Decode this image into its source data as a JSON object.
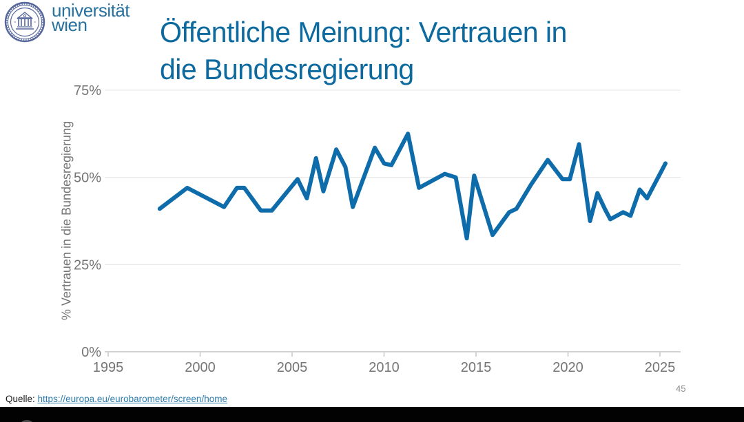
{
  "logo": {
    "institution": "Universität Wien",
    "wordmark_line1": "universität",
    "wordmark_line2": "wien",
    "seal_color": "#55679b",
    "wordmark_color": "#26719e"
  },
  "header": {
    "title_line1": "Öffentliche Meinung: Vertrauen in",
    "title_line2": "die Bundesregierung",
    "title_color": "#0d6a9e"
  },
  "source": {
    "label": "Quelle:",
    "link_text": "https://europa.eu/eurobarometer/screen/home"
  },
  "page": {
    "number": "45"
  },
  "chart_data": {
    "type": "line",
    "title": "Öffentliche Meinung: Vertrauen in die Bundesregierung",
    "xlabel": "",
    "ylabel": "% Vertrauen in die Bundesregierung",
    "x_ticks": [
      1995,
      2000,
      2005,
      2010,
      2015,
      2020,
      2025
    ],
    "x_tick_labels": [
      "1995",
      "2000",
      "2005",
      "2010",
      "2015",
      "2020",
      "2025"
    ],
    "y_ticks": [
      0,
      25,
      50,
      75
    ],
    "y_tick_labels": [
      "0%",
      "25%",
      "50%",
      "75%"
    ],
    "xlim": [
      1994.8,
      2026.2
    ],
    "ylim": [
      0,
      75
    ],
    "grid": "horizontal",
    "legend": "none",
    "line_color": "#0f6cab",
    "series": [
      {
        "name": "% Vertrauen in die Bundesregierung",
        "points": [
          [
            1997.8,
            41.0
          ],
          [
            1999.3,
            47.0
          ],
          [
            2001.3,
            41.5
          ],
          [
            2002.0,
            47.0
          ],
          [
            2002.4,
            47.0
          ],
          [
            2003.3,
            40.5
          ],
          [
            2003.9,
            40.5
          ],
          [
            2005.3,
            49.5
          ],
          [
            2005.8,
            44.0
          ],
          [
            2006.3,
            55.5
          ],
          [
            2006.7,
            46.0
          ],
          [
            2007.4,
            58.0
          ],
          [
            2007.9,
            53.0
          ],
          [
            2008.3,
            41.5
          ],
          [
            2009.5,
            58.5
          ],
          [
            2010.0,
            54.0
          ],
          [
            2010.4,
            53.5
          ],
          [
            2011.3,
            62.5
          ],
          [
            2011.9,
            47.0
          ],
          [
            2013.3,
            51.0
          ],
          [
            2013.9,
            50.0
          ],
          [
            2014.5,
            32.5
          ],
          [
            2014.9,
            50.5
          ],
          [
            2015.9,
            33.5
          ],
          [
            2016.8,
            40.0
          ],
          [
            2017.2,
            41.0
          ],
          [
            2018.0,
            48.0
          ],
          [
            2018.9,
            55.0
          ],
          [
            2019.7,
            49.5
          ],
          [
            2020.1,
            49.5
          ],
          [
            2020.6,
            59.5
          ],
          [
            2021.2,
            37.5
          ],
          [
            2021.6,
            45.5
          ],
          [
            2022.0,
            41.0
          ],
          [
            2022.3,
            38.0
          ],
          [
            2023.0,
            40.0
          ],
          [
            2023.4,
            39.0
          ],
          [
            2023.9,
            46.5
          ],
          [
            2024.3,
            44.0
          ],
          [
            2025.3,
            54.0
          ]
        ]
      }
    ]
  }
}
